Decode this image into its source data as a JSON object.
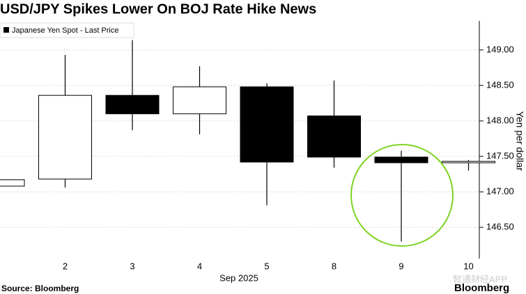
{
  "chart_data": {
    "type": "candlestick",
    "title": "USD/JPY Spikes Lower On BOJ Rate Hike News",
    "legend": "Japanese Yen Spot - Last Price",
    "y_label": "Yen per dollar",
    "x_label": "Sep 2025",
    "source": "Source: Bloomberg",
    "brand": "Bloomberg",
    "watermark": "智通财经APP",
    "categories": [
      null,
      "2",
      "3",
      "4",
      "5",
      "8",
      "9",
      "10"
    ],
    "open": [
      147.08,
      147.18,
      148.36,
      148.1,
      148.48,
      148.07,
      147.49,
      147.41
    ],
    "high": [
      147.17,
      148.93,
      149.14,
      148.77,
      148.53,
      148.57,
      147.58,
      147.45
    ],
    "low": [
      147.08,
      147.06,
      147.87,
      147.81,
      146.81,
      147.34,
      146.3,
      147.3
    ],
    "close": [
      147.17,
      148.36,
      148.1,
      148.48,
      147.42,
      147.49,
      147.41,
      147.43
    ],
    "up_color": "#ffffff",
    "down_color": "#000000",
    "ylim": [
      146.06,
      149.41
    ],
    "yticks": [
      {
        "value": 146.5,
        "label": "146.50"
      },
      {
        "value": 147,
        "label": "147.00"
      },
      {
        "value": 147.5,
        "label": "147.50"
      },
      {
        "value": 148,
        "label": "148.00"
      },
      {
        "value": 148.5,
        "label": "148.50"
      },
      {
        "value": 149,
        "label": "149.00"
      }
    ],
    "grid": true
  }
}
